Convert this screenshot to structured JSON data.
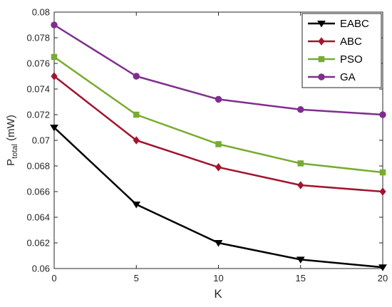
{
  "chart_data": {
    "type": "line",
    "title": "",
    "xlabel": "K",
    "ylabel": {
      "main": "P",
      "subscript": "total",
      "unit": " (mW)"
    },
    "xlim": [
      0,
      20
    ],
    "ylim": [
      0.06,
      0.08
    ],
    "x_ticks": [
      0,
      5,
      10,
      15,
      20
    ],
    "x_tick_labels": [
      "0",
      "5",
      "10",
      "15",
      "20"
    ],
    "y_ticks": [
      0.06,
      0.062,
      0.064,
      0.066,
      0.068,
      0.07,
      0.072,
      0.074,
      0.076,
      0.078,
      0.08
    ],
    "y_tick_labels": [
      "0.06",
      "0.062",
      "0.064",
      "0.066",
      "0.068",
      "0.07",
      "0.072",
      "0.074",
      "0.076",
      "0.078",
      "0.08"
    ],
    "grid": false,
    "legend_position": "top-right",
    "x": [
      0,
      5,
      10,
      15,
      20
    ],
    "series": [
      {
        "name": "EABC",
        "color": "#000000",
        "marker": "triangle-down",
        "values": [
          0.071,
          0.065,
          0.062,
          0.0607,
          0.0601
        ]
      },
      {
        "name": "ABC",
        "color": "#a2142f",
        "marker": "diamond",
        "values": [
          0.075,
          0.07,
          0.0679,
          0.0665,
          0.066
        ]
      },
      {
        "name": "PSO",
        "color": "#77ac30",
        "marker": "square",
        "values": [
          0.0765,
          0.072,
          0.0697,
          0.0682,
          0.0675
        ]
      },
      {
        "name": "GA",
        "color": "#7e2f8e",
        "marker": "circle",
        "values": [
          0.079,
          0.075,
          0.0732,
          0.0724,
          0.072
        ]
      }
    ]
  }
}
